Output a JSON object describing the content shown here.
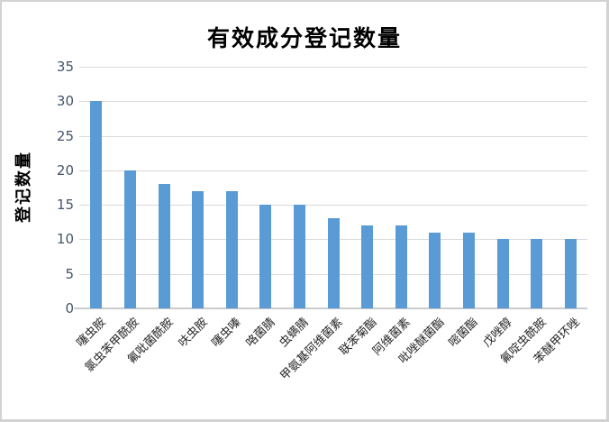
{
  "chart_data": {
    "type": "bar",
    "title": "有效成分登记数量",
    "xlabel": "",
    "ylabel": "登记数量",
    "categories": [
      "噻虫胺",
      "氯虫苯甲酰胺",
      "氟吡菌酰胺",
      "呋虫胺",
      "噻虫嗪",
      "咯菌腈",
      "虫螨腈",
      "甲氨基阿维菌素",
      "联苯菊酯",
      "阿维菌素",
      "吡唑醚菌酯",
      "嘧菌酯",
      "戊唑醇",
      "氟啶虫酰胺",
      "苯醚甲环唑"
    ],
    "values": [
      30,
      20,
      18,
      17,
      17,
      15,
      15,
      13,
      12,
      12,
      11,
      11,
      10,
      10,
      10
    ],
    "ylim": [
      0,
      35
    ],
    "yticks": [
      0,
      5,
      10,
      15,
      20,
      25,
      30,
      35
    ],
    "grid": true,
    "legend_position": "none",
    "bar_color": "#5b9bd5",
    "gridline_color": "#d9d9d9",
    "axis_number_color": "#44546a",
    "category_label_color": "#262626",
    "title_color": "#000000"
  }
}
